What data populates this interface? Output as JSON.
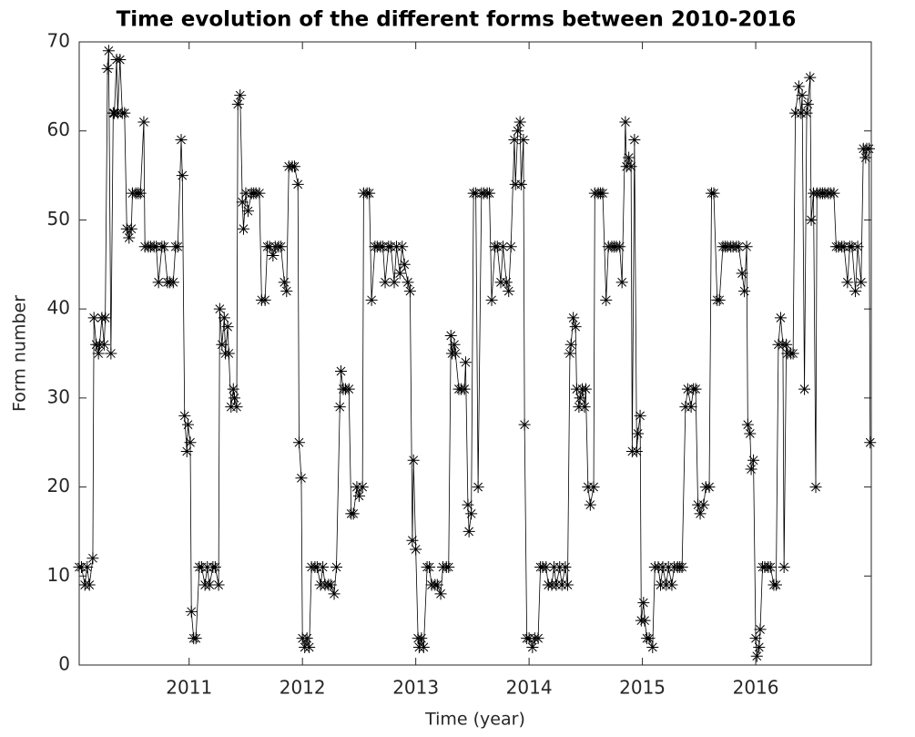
{
  "chart_data": {
    "type": "line",
    "title": "Time evolution of the different forms between 2010-2016",
    "xlabel": "Time (year)",
    "ylabel": "Form number",
    "xlim": [
      2010.03,
      2017.02
    ],
    "ylim": [
      0,
      70
    ],
    "xticks": [
      2011,
      2012,
      2013,
      2014,
      2015,
      2016
    ],
    "yticks": [
      0,
      10,
      20,
      30,
      40,
      50,
      60,
      70
    ],
    "color": "#000000",
    "marker": "asterisk",
    "x": [
      2010.03,
      2010.05,
      2010.08,
      2010.1,
      2010.12,
      2010.15,
      2010.16,
      2010.18,
      2010.2,
      2010.21,
      2010.23,
      2010.25,
      2010.26,
      2010.28,
      2010.29,
      2010.31,
      2010.33,
      2010.34,
      2010.36,
      2010.37,
      2010.39,
      2010.41,
      2010.43,
      2010.45,
      2010.47,
      2010.49,
      2010.5,
      2010.53,
      2010.55,
      2010.57,
      2010.6,
      2010.61,
      2010.64,
      2010.66,
      2010.69,
      2010.71,
      2010.73,
      2010.76,
      2010.78,
      2010.81,
      2010.83,
      2010.86,
      2010.88,
      2010.9,
      2010.93,
      2010.94,
      2010.96,
      2010.98,
      2010.99,
      2011.01,
      2011.02,
      2011.04,
      2011.06,
      2011.09,
      2011.11,
      2011.14,
      2011.16,
      2011.18,
      2011.21,
      2011.23,
      2011.26,
      2011.27,
      2011.29,
      2011.31,
      2011.32,
      2011.34,
      2011.35,
      2011.37,
      2011.39,
      2011.4,
      2011.42,
      2011.43,
      2011.45,
      2011.47,
      2011.48,
      2011.5,
      2011.52,
      2011.55,
      2011.57,
      2011.59,
      2011.62,
      2011.64,
      2011.67,
      2011.69,
      2011.71,
      2011.74,
      2011.76,
      2011.79,
      2011.81,
      2011.84,
      2011.86,
      2011.88,
      2011.91,
      2011.93,
      2011.96,
      2011.97,
      2011.99,
      2012.0,
      2012.02,
      2012.04,
      2012.06,
      2012.08,
      2012.11,
      2012.13,
      2012.16,
      2012.18,
      2012.2,
      2012.23,
      2012.25,
      2012.28,
      2012.3,
      2012.33,
      2012.34,
      2012.36,
      2012.38,
      2012.41,
      2012.43,
      2012.45,
      2012.48,
      2012.5,
      2012.53,
      2012.54,
      2012.57,
      2012.59,
      2012.61,
      2012.64,
      2012.66,
      2012.69,
      2012.71,
      2012.73,
      2012.76,
      2012.78,
      2012.81,
      2012.83,
      2012.86,
      2012.88,
      2012.9,
      2012.93,
      2012.95,
      2012.97,
      2012.98,
      2013.0,
      2013.02,
      2013.03,
      2013.05,
      2013.07,
      2013.1,
      2013.12,
      2013.14,
      2013.17,
      2013.19,
      2013.22,
      2013.24,
      2013.27,
      2013.29,
      2013.31,
      2013.32,
      2013.34,
      2013.35,
      2013.38,
      2013.4,
      2013.43,
      2013.44,
      2013.46,
      2013.47,
      2013.49,
      2013.51,
      2013.53,
      2013.55,
      2013.58,
      2013.6,
      2013.63,
      2013.65,
      2013.67,
      2013.7,
      2013.72,
      2013.75,
      2013.77,
      2013.8,
      2013.82,
      2013.84,
      2013.87,
      2013.88,
      2013.9,
      2013.92,
      2013.93,
      2013.95,
      2013.96,
      2013.98,
      2014.0,
      2014.03,
      2014.05,
      2014.08,
      2014.1,
      2014.12,
      2014.15,
      2014.17,
      2014.2,
      2014.22,
      2014.24,
      2014.27,
      2014.29,
      2014.32,
      2014.34,
      2014.36,
      2014.37,
      2014.39,
      2014.41,
      2014.42,
      2014.44,
      2014.45,
      2014.47,
      2014.49,
      2014.5,
      2014.52,
      2014.54,
      2014.57,
      2014.58,
      2014.61,
      2014.63,
      2014.65,
      2014.68,
      2014.7,
      2014.73,
      2014.75,
      2014.77,
      2014.8,
      2014.82,
      2014.85,
      2014.86,
      2014.88,
      2014.9,
      2014.91,
      2014.93,
      2014.95,
      2014.96,
      2014.98,
      2014.99,
      2015.01,
      2015.02,
      2015.04,
      2015.06,
      2015.09,
      2015.11,
      2015.14,
      2015.16,
      2015.18,
      2015.21,
      2015.23,
      2015.26,
      2015.28,
      2015.31,
      2015.33,
      2015.35,
      2015.38,
      2015.4,
      2015.43,
      2015.45,
      2015.47,
      2015.49,
      2015.51,
      2015.54,
      2015.56,
      2015.59,
      2015.61,
      2015.63,
      2015.66,
      2015.68,
      2015.71,
      2015.73,
      2015.75,
      2015.78,
      2015.8,
      2015.83,
      2015.85,
      2015.88,
      2015.9,
      2015.92,
      2015.93,
      2015.95,
      2015.96,
      2015.98,
      2016.0,
      2016.01,
      2016.03,
      2016.04,
      2016.06,
      2016.08,
      2016.11,
      2016.13,
      2016.16,
      2016.18,
      2016.2,
      2016.22,
      2016.24,
      2016.25,
      2016.27,
      2016.28,
      2016.31,
      2016.33,
      2016.35,
      2016.38,
      2016.4,
      2016.41,
      2016.43,
      2016.45,
      2016.46,
      2016.48,
      2016.49,
      2016.51,
      2016.53,
      2016.54,
      2016.57,
      2016.59,
      2016.61,
      2016.64,
      2016.66,
      2016.69,
      2016.71,
      2016.73,
      2016.76,
      2016.78,
      2016.81,
      2016.83,
      2016.85,
      2016.88,
      2016.9,
      2016.93,
      2016.95,
      2016.97,
      2016.98,
      2017.0,
      2017.01
    ],
    "values": [
      11,
      11,
      9,
      11,
      9,
      12,
      39,
      36,
      35,
      36,
      39,
      36,
      39,
      67,
      69,
      35,
      62,
      62,
      68,
      62,
      68,
      62,
      62,
      49,
      48,
      49,
      53,
      53,
      53,
      53,
      61,
      47,
      47,
      47,
      47,
      47,
      43,
      47,
      47,
      43,
      43,
      43,
      47,
      47,
      59,
      55,
      28,
      24,
      27,
      25,
      6,
      3,
      3,
      11,
      11,
      9,
      11,
      9,
      11,
      11,
      9,
      40,
      36,
      39,
      35,
      38,
      35,
      29,
      31,
      30,
      29,
      63,
      64,
      52,
      49,
      53,
      51,
      53,
      53,
      53,
      53,
      41,
      41,
      47,
      47,
      46,
      47,
      47,
      47,
      43,
      42,
      56,
      56,
      56,
      54,
      25,
      21,
      3,
      2,
      3,
      2,
      11,
      11,
      11,
      9,
      11,
      9,
      9,
      9,
      8,
      11,
      29,
      33,
      31,
      31,
      31,
      17,
      17,
      20,
      19,
      20,
      53,
      53,
      53,
      41,
      47,
      47,
      47,
      47,
      43,
      47,
      47,
      43,
      47,
      44,
      47,
      45,
      43,
      42,
      14,
      23,
      13,
      3,
      2,
      3,
      2,
      11,
      11,
      9,
      9,
      9,
      8,
      11,
      11,
      11,
      37,
      35,
      36,
      35,
      31,
      31,
      31,
      34,
      18,
      15,
      17,
      53,
      53,
      20,
      53,
      53,
      53,
      53,
      41,
      47,
      47,
      43,
      47,
      43,
      42,
      47,
      59,
      54,
      60,
      61,
      54,
      59,
      27,
      3,
      3,
      2,
      3,
      3,
      11,
      11,
      11,
      9,
      9,
      11,
      9,
      11,
      9,
      11,
      9,
      35,
      36,
      39,
      38,
      31,
      29,
      30,
      31,
      29,
      31,
      20,
      18,
      20,
      53,
      53,
      53,
      53,
      41,
      47,
      47,
      47,
      47,
      47,
      43,
      61,
      56,
      57,
      56,
      24,
      59,
      24,
      26,
      28,
      5,
      7,
      5,
      3,
      3,
      2,
      11,
      11,
      9,
      11,
      9,
      11,
      9,
      11,
      11,
      11,
      11,
      29,
      31,
      29,
      31,
      31,
      18,
      17,
      18,
      20,
      20,
      53,
      53,
      41,
      41,
      47,
      47,
      47,
      47,
      47,
      47,
      47,
      44,
      42,
      47,
      27,
      26,
      22,
      23,
      3,
      1,
      2,
      4,
      11,
      11,
      11,
      11,
      9,
      9,
      36,
      39,
      36,
      11,
      36,
      35,
      35,
      35,
      62,
      65,
      62,
      64,
      31,
      62,
      63,
      66,
      50,
      53,
      20,
      53,
      53,
      53,
      53,
      53,
      53,
      53,
      47,
      47,
      47,
      47,
      43,
      47,
      47,
      42,
      47,
      43,
      58,
      57,
      58,
      58,
      25
    ]
  }
}
